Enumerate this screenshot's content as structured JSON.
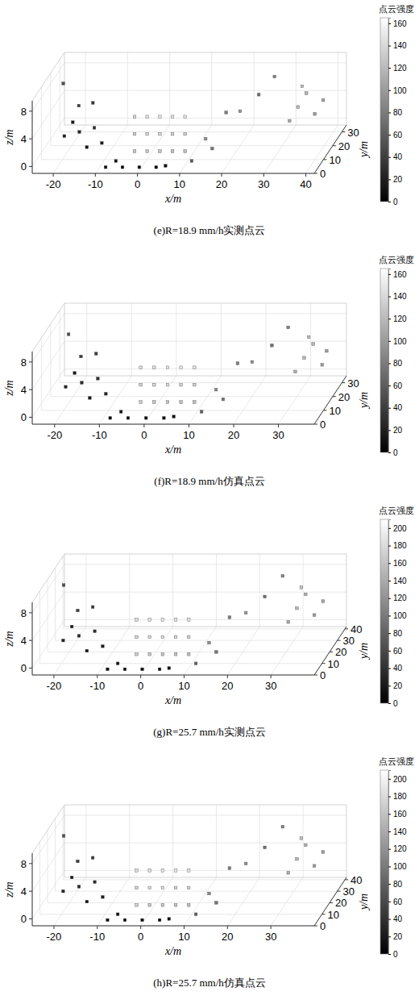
{
  "chart_data": [
    {
      "type": "scatter3d",
      "title": "(e)R=18.9 mm/h实测点云",
      "x_label": "x/m",
      "y_label": "y/m",
      "z_label": "z/m",
      "xlim": [
        -25,
        42
      ],
      "ylim": [
        0,
        35
      ],
      "zlim": [
        -1,
        9.5
      ],
      "xticks": [
        -20,
        -10,
        0,
        10,
        20,
        30,
        40
      ],
      "yticks": [
        0,
        10,
        20,
        30
      ],
      "zticks": [
        0,
        4,
        8
      ],
      "grid": true,
      "x": [
        -2,
        -2,
        -2,
        1,
        1,
        1,
        4,
        4,
        4,
        7,
        7,
        7,
        10,
        10,
        10,
        -20,
        -18,
        -16,
        -14,
        -12,
        -10,
        -17,
        -13,
        -8,
        -4,
        0,
        4,
        6,
        -6,
        30,
        32,
        34,
        36,
        38,
        33,
        14,
        18,
        20,
        24,
        12,
        16,
        -22,
        26
      ],
      "y": [
        6,
        6,
        6,
        6,
        6,
        6,
        6,
        6,
        6,
        6,
        6,
        6,
        6,
        6,
        6,
        12,
        12,
        10,
        9,
        8,
        7,
        14,
        11,
        2,
        2,
        2,
        2,
        3,
        4,
        28,
        28,
        28,
        28,
        28,
        28,
        10,
        14,
        20,
        22,
        4,
        8,
        20,
        30
      ],
      "z": [
        1,
        3.5,
        6,
        1,
        3.5,
        6,
        1,
        3.5,
        6,
        1,
        3.5,
        6,
        1,
        3.5,
        6,
        2,
        4,
        3,
        1,
        4,
        2,
        6,
        7,
        -0.5,
        -0.5,
        -0.5,
        -0.5,
        -0.5,
        0,
        1,
        3,
        5,
        2,
        4,
        6,
        2,
        5,
        4,
        6,
        0,
        1,
        8,
        7
      ],
      "intensity": [
        130,
        135,
        140,
        128,
        138,
        145,
        126,
        140,
        150,
        124,
        136,
        148,
        122,
        134,
        146,
        20,
        15,
        25,
        10,
        30,
        18,
        40,
        35,
        5,
        0,
        3,
        2,
        8,
        12,
        110,
        120,
        115,
        100,
        105,
        125,
        90,
        80,
        95,
        70,
        60,
        75,
        50,
        85
      ],
      "colorbar": {
        "label": "点云强度",
        "range": [
          0,
          165
        ],
        "ticks": [
          0,
          20,
          40,
          60,
          80,
          100,
          120,
          140,
          160
        ]
      }
    },
    {
      "type": "scatter3d",
      "title": "(f)R=18.9 mm/h仿真点云",
      "x_label": "x/m",
      "y_label": "y/m",
      "z_label": "z/m",
      "xlim": [
        -25,
        38
      ],
      "ylim": [
        0,
        35
      ],
      "zlim": [
        -1,
        9.5
      ],
      "xticks": [
        -20,
        -10,
        0,
        10,
        20,
        30
      ],
      "yticks": [
        0,
        10,
        20,
        30
      ],
      "zticks": [
        0,
        4,
        8
      ],
      "grid": true,
      "x": [
        -2,
        -2,
        -2,
        1,
        1,
        1,
        4,
        4,
        4,
        7,
        7,
        7,
        10,
        10,
        10,
        -20,
        -18,
        -16,
        -14,
        -12,
        -10,
        -17,
        -13,
        -8,
        -4,
        0,
        4,
        6,
        -6,
        28,
        30,
        32,
        34,
        35,
        31,
        14,
        18,
        20,
        24,
        12,
        16,
        -21,
        26
      ],
      "y": [
        6,
        6,
        6,
        6,
        6,
        6,
        6,
        6,
        6,
        6,
        6,
        6,
        6,
        6,
        6,
        12,
        12,
        10,
        9,
        8,
        7,
        14,
        11,
        2,
        2,
        2,
        2,
        3,
        4,
        28,
        28,
        28,
        28,
        28,
        28,
        10,
        14,
        20,
        22,
        4,
        8,
        20,
        30
      ],
      "z": [
        1,
        3.5,
        6,
        1,
        3.5,
        6,
        1,
        3.5,
        6,
        1,
        3.5,
        6,
        1,
        3.5,
        6,
        2,
        4,
        3,
        1,
        4,
        2,
        6,
        7,
        -0.5,
        -0.5,
        -0.5,
        -0.5,
        -0.5,
        0,
        1,
        3,
        5,
        2,
        4,
        6,
        2,
        5,
        4,
        6,
        0,
        1,
        8,
        7
      ],
      "intensity": [
        132,
        133,
        142,
        127,
        139,
        143,
        128,
        141,
        148,
        125,
        135,
        150,
        121,
        133,
        147,
        22,
        14,
        26,
        12,
        28,
        19,
        38,
        36,
        6,
        1,
        4,
        3,
        9,
        11,
        112,
        118,
        116,
        102,
        104,
        122,
        88,
        82,
        93,
        72,
        62,
        74,
        52,
        83
      ],
      "colorbar": {
        "label": "点云强度",
        "range": [
          0,
          165
        ],
        "ticks": [
          0,
          20,
          40,
          60,
          80,
          100,
          120,
          140,
          160
        ]
      }
    },
    {
      "type": "scatter3d",
      "title": "(g)R=25.7 mm/h实测点云",
      "x_label": "x/m",
      "y_label": "y/m",
      "z_label": "z/m",
      "xlim": [
        -25,
        40
      ],
      "ylim": [
        0,
        42
      ],
      "zlim": [
        -1,
        9.5
      ],
      "xticks": [
        -20,
        -10,
        0,
        10,
        20,
        30
      ],
      "yticks": [
        0,
        10,
        20,
        30,
        40
      ],
      "zticks": [
        0,
        4,
        8
      ],
      "grid": true,
      "x": [
        -2,
        -2,
        -2,
        1,
        1,
        1,
        4,
        4,
        4,
        7,
        7,
        7,
        10,
        10,
        10,
        -20,
        -18,
        -16,
        -14,
        -12,
        -10,
        -17,
        -13,
        -8,
        -4,
        0,
        4,
        6,
        -6,
        28,
        30,
        32,
        34,
        36,
        31,
        14,
        18,
        20,
        24,
        12,
        16,
        -22,
        26
      ],
      "y": [
        6,
        6,
        6,
        6,
        6,
        6,
        6,
        6,
        6,
        6,
        6,
        6,
        6,
        6,
        6,
        12,
        12,
        10,
        9,
        8,
        7,
        14,
        11,
        2,
        2,
        2,
        2,
        3,
        4,
        34,
        34,
        34,
        34,
        34,
        34,
        10,
        14,
        24,
        26,
        4,
        8,
        24,
        38
      ],
      "z": [
        1,
        3.5,
        6,
        1,
        3.5,
        6,
        1,
        3.5,
        6,
        1,
        3.5,
        6,
        1,
        3.5,
        6,
        2,
        4,
        3,
        1,
        4,
        2,
        6,
        7,
        -0.5,
        -0.5,
        -0.5,
        -0.5,
        -0.5,
        0,
        1,
        3,
        5,
        2,
        4,
        6,
        2,
        5,
        4,
        6,
        0,
        1,
        8,
        7
      ],
      "intensity": [
        168,
        172,
        180,
        165,
        178,
        186,
        162,
        180,
        192,
        160,
        175,
        190,
        158,
        172,
        188,
        25,
        20,
        30,
        12,
        38,
        22,
        50,
        45,
        6,
        0,
        4,
        3,
        10,
        15,
        140,
        152,
        146,
        128,
        134,
        160,
        115,
        102,
        120,
        90,
        78,
        96,
        64,
        108
      ],
      "colorbar": {
        "label": "点云强度",
        "range": [
          0,
          210
        ],
        "ticks": [
          0,
          20,
          40,
          60,
          80,
          100,
          120,
          140,
          160,
          180,
          200
        ]
      }
    },
    {
      "type": "scatter3d",
      "title": "(h)R=25.7 mm/h仿真点云",
      "x_label": "x/m",
      "y_label": "y/m",
      "z_label": "z/m",
      "xlim": [
        -25,
        40
      ],
      "ylim": [
        0,
        42
      ],
      "zlim": [
        -1,
        9.5
      ],
      "xticks": [
        -20,
        -10,
        0,
        10,
        20,
        30
      ],
      "yticks": [
        0,
        10,
        20,
        30,
        40
      ],
      "zticks": [
        0,
        4,
        8
      ],
      "grid": true,
      "x": [
        -2,
        -2,
        -2,
        1,
        1,
        1,
        4,
        4,
        4,
        7,
        7,
        7,
        10,
        10,
        10,
        -20,
        -18,
        -16,
        -14,
        -12,
        -10,
        -17,
        -13,
        -8,
        -4,
        0,
        4,
        6,
        -6,
        28,
        30,
        32,
        34,
        36,
        31,
        14,
        18,
        20,
        24,
        12,
        16,
        -22,
        26
      ],
      "y": [
        6,
        6,
        6,
        6,
        6,
        6,
        6,
        6,
        6,
        6,
        6,
        6,
        6,
        6,
        6,
        12,
        12,
        10,
        9,
        8,
        7,
        14,
        11,
        2,
        2,
        2,
        2,
        3,
        4,
        34,
        34,
        34,
        34,
        34,
        34,
        10,
        14,
        24,
        26,
        4,
        8,
        24,
        38
      ],
      "z": [
        1,
        3.5,
        6,
        1,
        3.5,
        6,
        1,
        3.5,
        6,
        1,
        3.5,
        6,
        1,
        3.5,
        6,
        2,
        4,
        3,
        1,
        4,
        2,
        6,
        7,
        -0.5,
        -0.5,
        -0.5,
        -0.5,
        -0.5,
        0,
        1,
        3,
        5,
        2,
        4,
        6,
        2,
        5,
        4,
        6,
        0,
        1,
        8,
        7
      ],
      "intensity": [
        170,
        171,
        182,
        164,
        179,
        184,
        163,
        182,
        190,
        161,
        174,
        192,
        157,
        171,
        189,
        27,
        19,
        32,
        13,
        36,
        23,
        48,
        46,
        7,
        1,
        5,
        2,
        11,
        14,
        142,
        150,
        148,
        130,
        132,
        158,
        113,
        104,
        118,
        92,
        80,
        94,
        66,
        106
      ],
      "colorbar": {
        "label": "点云强度",
        "range": [
          0,
          210
        ],
        "ticks": [
          0,
          20,
          40,
          60,
          80,
          100,
          120,
          140,
          160,
          180,
          200
        ]
      }
    }
  ]
}
